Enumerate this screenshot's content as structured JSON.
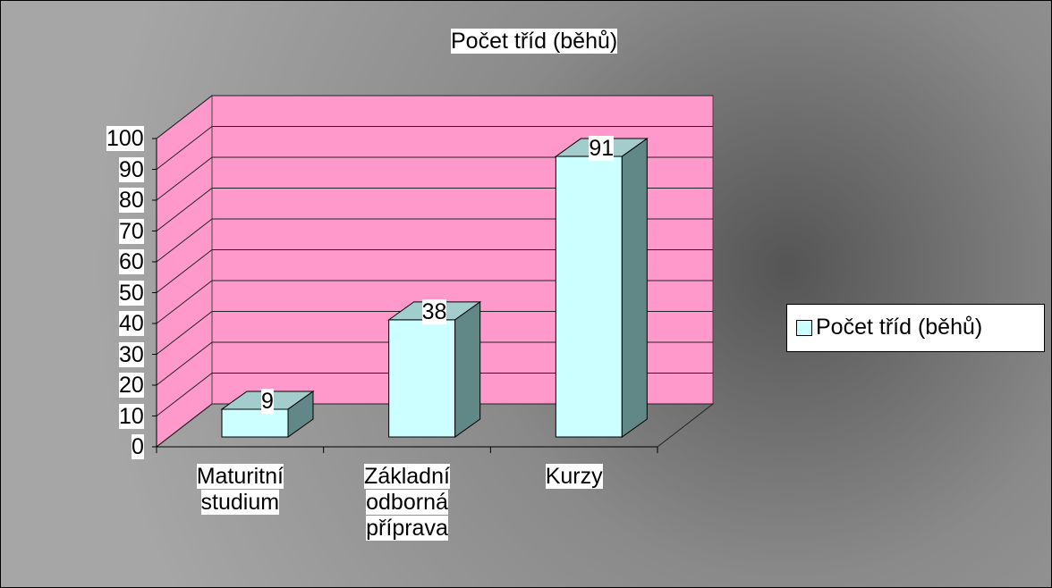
{
  "chart_data": {
    "type": "bar3d",
    "title": "Počet tříd (běhů)",
    "categories": [
      "Maturitní studium",
      "Základní odborná příprava",
      "Kurzy"
    ],
    "series": [
      {
        "name": "Počet tříd (běhů)",
        "color": "#ccffff",
        "values": [
          9,
          38,
          91
        ]
      }
    ],
    "ylim": [
      0,
      100
    ],
    "yticks": [
      0,
      10,
      20,
      30,
      40,
      50,
      60,
      70,
      80,
      90,
      100
    ],
    "grid": true,
    "legend": "right",
    "wall_color": "#ff99cc"
  }
}
